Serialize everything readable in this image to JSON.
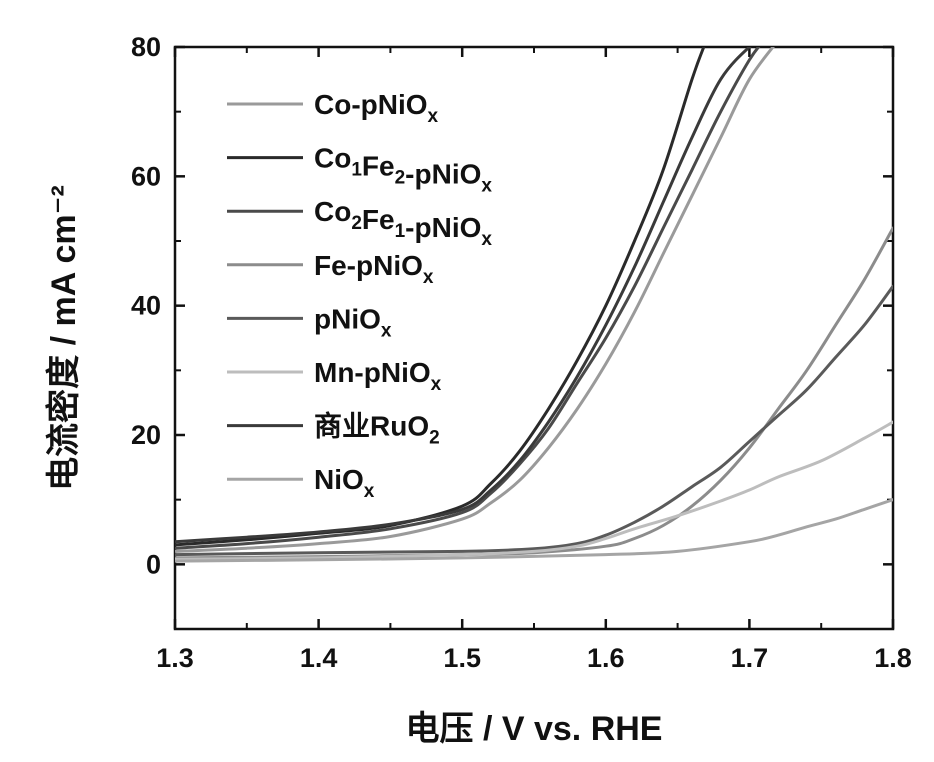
{
  "chart_data": {
    "type": "line",
    "title": "",
    "xlabel": "电压 / V vs. RHE",
    "ylabel": "电流密度 / mA cm⁻²",
    "xlim": [
      1.3,
      1.8
    ],
    "ylim": [
      -10,
      80
    ],
    "xticks": [
      "1.3",
      "1.4",
      "1.5",
      "1.6",
      "1.7",
      "1.8"
    ],
    "yticks": [
      "0",
      "20",
      "40",
      "60",
      "80"
    ],
    "xtick_values": [
      1.3,
      1.4,
      1.5,
      1.6,
      1.7,
      1.8
    ],
    "ytick_values": [
      0,
      20,
      40,
      60,
      80
    ],
    "grid": false,
    "legend_position": "top-left",
    "series": [
      {
        "name": "Co-pNiOx",
        "label_main": "Co-pNiO",
        "label_sub": "x",
        "color": "#9a9a9a",
        "x": [
          1.3,
          1.35,
          1.4,
          1.45,
          1.5,
          1.52,
          1.54,
          1.56,
          1.58,
          1.6,
          1.62,
          1.64,
          1.66,
          1.68,
          1.7,
          1.72
        ],
        "y": [
          2.0,
          2.5,
          3.2,
          4.3,
          7.0,
          9.5,
          13.0,
          18.0,
          24.0,
          31.0,
          39.0,
          48.0,
          57.0,
          66.0,
          75.0,
          81.0
        ]
      },
      {
        "name": "Co1Fe2-pNiOx",
        "label_runs": [
          [
            "Co",
            ""
          ],
          [
            "1",
            "sub"
          ],
          [
            "Fe",
            ""
          ],
          [
            "2",
            "sub"
          ],
          [
            "-pNiO",
            ""
          ],
          [
            "x",
            "sub"
          ]
        ],
        "color": "#2a2a2a",
        "x": [
          1.3,
          1.35,
          1.4,
          1.45,
          1.5,
          1.52,
          1.54,
          1.56,
          1.58,
          1.6,
          1.62,
          1.64,
          1.66,
          1.67
        ],
        "y": [
          3.0,
          3.8,
          4.8,
          6.0,
          9.0,
          12.5,
          17.5,
          24.0,
          31.5,
          40.0,
          50.0,
          61.0,
          75.0,
          81.0
        ]
      },
      {
        "name": "Co2Fe1-pNiOx",
        "label_runs": [
          [
            "Co",
            ""
          ],
          [
            "2",
            "sub"
          ],
          [
            "Fe",
            ""
          ],
          [
            "1",
            "sub"
          ],
          [
            "-pNiO",
            ""
          ],
          [
            "x",
            "sub"
          ]
        ],
        "color": "#4a4a4a",
        "x": [
          1.3,
          1.35,
          1.4,
          1.45,
          1.5,
          1.52,
          1.54,
          1.56,
          1.58,
          1.6,
          1.62,
          1.64,
          1.66,
          1.68,
          1.7,
          1.71
        ],
        "y": [
          2.5,
          3.2,
          4.2,
          5.5,
          8.0,
          11.0,
          15.5,
          21.0,
          28.0,
          35.0,
          43.0,
          52.0,
          61.0,
          70.0,
          78.0,
          81.0
        ]
      },
      {
        "name": "Fe-pNiOx",
        "label_main": "Fe-pNiO",
        "label_sub": "x",
        "color": "#8c8c8c",
        "x": [
          1.3,
          1.4,
          1.5,
          1.55,
          1.6,
          1.62,
          1.64,
          1.66,
          1.68,
          1.7,
          1.72,
          1.74,
          1.76,
          1.78,
          1.8
        ],
        "y": [
          1.0,
          1.2,
          1.5,
          1.8,
          2.8,
          4.0,
          6.0,
          9.0,
          13.0,
          18.0,
          24.0,
          30.0,
          37.0,
          44.0,
          52.0
        ]
      },
      {
        "name": "pNiOx",
        "label_main": "pNiO",
        "label_sub": "x",
        "color": "#5a5a5a",
        "x": [
          1.3,
          1.4,
          1.5,
          1.55,
          1.58,
          1.6,
          1.62,
          1.64,
          1.66,
          1.68,
          1.7,
          1.72,
          1.74,
          1.76,
          1.78,
          1.8
        ],
        "y": [
          1.5,
          1.8,
          2.0,
          2.4,
          3.2,
          4.5,
          6.5,
          9.0,
          12.0,
          15.0,
          19.0,
          23.0,
          27.0,
          32.0,
          37.0,
          43.0
        ]
      },
      {
        "name": "Mn-pNiOx",
        "label_main": "Mn-pNiO",
        "label_sub": "x",
        "color": "#bdbdbd",
        "x": [
          1.3,
          1.4,
          1.5,
          1.55,
          1.58,
          1.6,
          1.62,
          1.65,
          1.68,
          1.7,
          1.72,
          1.75,
          1.78,
          1.8
        ],
        "y": [
          0.8,
          1.0,
          1.5,
          2.0,
          2.8,
          4.0,
          5.5,
          7.5,
          9.8,
          11.5,
          13.5,
          16.0,
          19.5,
          22.0
        ]
      },
      {
        "name": "商业RuO2",
        "label_runs": [
          [
            "商业RuO",
            ""
          ],
          [
            "2",
            "sub"
          ]
        ],
        "color": "#3a3a3a",
        "x": [
          1.3,
          1.35,
          1.4,
          1.45,
          1.5,
          1.52,
          1.54,
          1.56,
          1.58,
          1.6,
          1.62,
          1.64,
          1.66,
          1.68,
          1.7,
          1.71
        ],
        "y": [
          3.5,
          4.2,
          5.0,
          6.2,
          8.5,
          11.5,
          16.0,
          22.0,
          29.0,
          37.0,
          46.0,
          56.0,
          66.0,
          75.0,
          80.0,
          81.0
        ]
      },
      {
        "name": "NiOx",
        "label_main": "NiO",
        "label_sub": "x",
        "color": "#a5a5a5",
        "x": [
          1.3,
          1.4,
          1.5,
          1.6,
          1.65,
          1.7,
          1.72,
          1.74,
          1.76,
          1.78,
          1.8
        ],
        "y": [
          0.5,
          0.7,
          1.0,
          1.5,
          2.0,
          3.5,
          4.5,
          5.8,
          7.0,
          8.5,
          10.0
        ]
      }
    ]
  }
}
